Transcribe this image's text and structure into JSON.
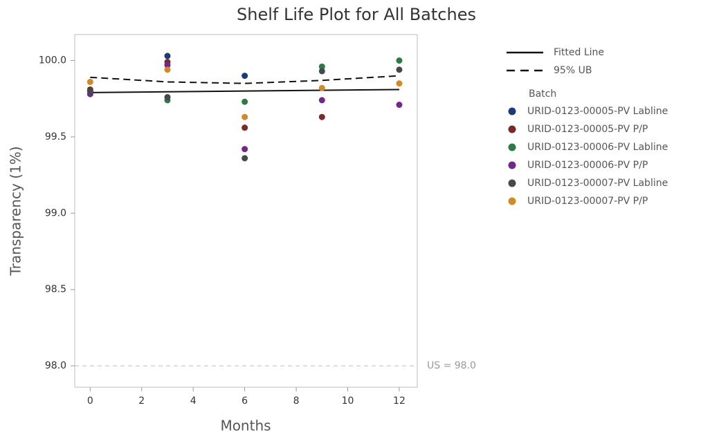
{
  "chart_data": {
    "type": "scatter",
    "title": "Shelf Life Plot for All Batches",
    "x_label": "Months",
    "y_label": "Transparency (1%)",
    "xlim": [
      -0.6,
      12.7
    ],
    "ylim": [
      97.86,
      100.17
    ],
    "xticks": [
      0,
      2,
      4,
      6,
      8,
      10,
      12
    ],
    "yticks": [
      {
        "value": 98,
        "label": "98.0"
      },
      {
        "value": 98.5,
        "label": "98.5"
      },
      {
        "value": 99,
        "label": "99.0"
      },
      {
        "value": 99.5,
        "label": "99.5"
      },
      {
        "value": 100,
        "label": "100.0"
      }
    ],
    "lines": [
      {
        "name": "Fitted Line",
        "color": "#111111",
        "dash": false,
        "x": [
          0,
          12
        ],
        "values": [
          99.79,
          99.81
        ]
      },
      {
        "name": "95% UB",
        "color": "#111111",
        "dash": true,
        "x": [
          0,
          3,
          6,
          9,
          12
        ],
        "values": [
          99.89,
          99.86,
          99.85,
          99.87,
          99.9
        ]
      }
    ],
    "spec": {
      "label": "US = 98.0",
      "value": 98
    },
    "legend_title": "Batch",
    "series": [
      {
        "name": "URID-0123-00005-PV Labline",
        "color": "#1f3a7a",
        "x": [
          0,
          3,
          6
        ],
        "values": [
          99.8,
          100.03,
          99.9
        ]
      },
      {
        "name": "URID-0123-00005-PV P/P",
        "color": "#7a2a2a",
        "x": [
          0,
          3,
          6,
          9
        ],
        "values": [
          99.81,
          99.99,
          99.56,
          99.63
        ]
      },
      {
        "name": "URID-0123-00006-PV Labline",
        "color": "#2e7a46",
        "x": [
          0,
          3,
          6,
          9,
          12
        ],
        "values": [
          99.8,
          99.74,
          99.73,
          99.96,
          100.0
        ]
      },
      {
        "name": "URID-0123-00006-PV P/P",
        "color": "#6e2a86",
        "x": [
          0,
          3,
          6,
          9,
          12
        ],
        "values": [
          99.78,
          99.97,
          99.42,
          99.74,
          99.71
        ]
      },
      {
        "name": "URID-0123-00007-PV Labline",
        "color": "#444a4a",
        "x": [
          0,
          3,
          6,
          9,
          12
        ],
        "values": [
          99.8,
          99.76,
          99.36,
          99.93,
          99.94
        ]
      },
      {
        "name": "URID-0123-00007-PV P/P",
        "color": "#d08a2a",
        "x": [
          0,
          3,
          6,
          9,
          12
        ],
        "values": [
          99.86,
          99.94,
          99.63,
          99.82,
          99.85
        ]
      }
    ]
  }
}
